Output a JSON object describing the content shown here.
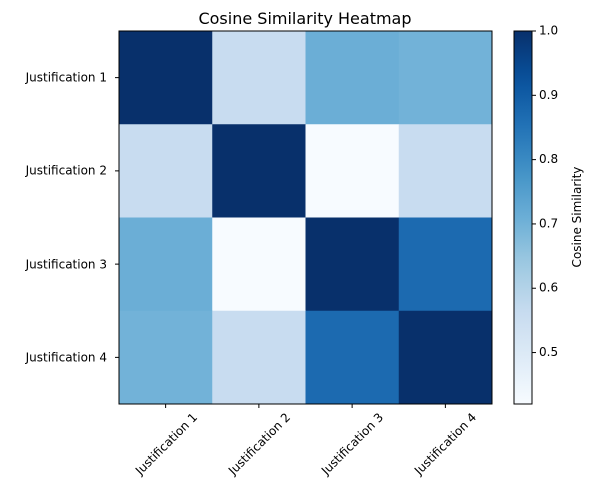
{
  "chart_data": {
    "type": "heatmap",
    "title": "Cosine Similarity Heatmap",
    "row_labels": [
      "Justification 1",
      "Justification 2",
      "Justification 3",
      "Justification 4"
    ],
    "col_labels": [
      "Justification 1",
      "Justification 2",
      "Justification 3",
      "Justification 4"
    ],
    "values": [
      [
        1.0,
        0.56,
        0.71,
        0.7
      ],
      [
        0.56,
        1.0,
        0.42,
        0.56
      ],
      [
        0.71,
        0.42,
        1.0,
        0.87
      ],
      [
        0.7,
        0.56,
        0.87,
        1.0
      ]
    ],
    "colormap": "Blues",
    "colorbar": {
      "label": "Cosine Similarity",
      "range": [
        0.42,
        1.0
      ],
      "ticks": [
        "0.5",
        "0.6",
        "0.7",
        "0.8",
        "0.9",
        "1.0"
      ],
      "tick_values": [
        0.5,
        0.6,
        0.7,
        0.8,
        0.9,
        1.0
      ]
    },
    "grid": false,
    "legend": "none"
  }
}
